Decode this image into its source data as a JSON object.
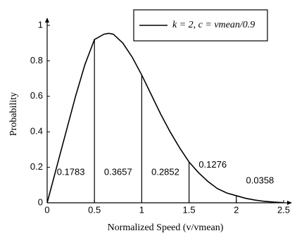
{
  "chart_data": {
    "type": "line",
    "xlabel": "Normalized Speed (v/vmean)",
    "ylabel": "Probability",
    "xlim": [
      0,
      2.5
    ],
    "xticks": [
      0,
      0.5,
      1,
      1.5,
      2,
      2.5
    ],
    "ylim": [
      0,
      1
    ],
    "yticks": [
      0,
      0.2,
      0.4,
      0.6,
      0.8,
      1
    ],
    "x": [
      0,
      0.1,
      0.2,
      0.3,
      0.4,
      0.5,
      0.6,
      0.65,
      0.7,
      0.8,
      0.9,
      1.0,
      1.1,
      1.2,
      1.3,
      1.4,
      1.5,
      1.6,
      1.7,
      1.8,
      1.9,
      2.0,
      2.1,
      2.2,
      2.3,
      2.4,
      2.5
    ],
    "series": [
      {
        "name": "k = 2, c = vmean/0.9",
        "color": "#000000",
        "values": [
          0,
          0.2,
          0.4,
          0.6,
          0.78,
          0.92,
          0.95,
          0.955,
          0.95,
          0.9,
          0.82,
          0.72,
          0.61,
          0.5,
          0.4,
          0.31,
          0.23,
          0.17,
          0.12,
          0.08,
          0.055,
          0.04,
          0.025,
          0.015,
          0.008,
          0.004,
          0.001
        ]
      }
    ],
    "boundaries": [
      0,
      0.5,
      1,
      1.5,
      2,
      2.5
    ],
    "areas": [
      0.1783,
      0.3657,
      0.2852,
      0.1276,
      0.0358
    ]
  }
}
